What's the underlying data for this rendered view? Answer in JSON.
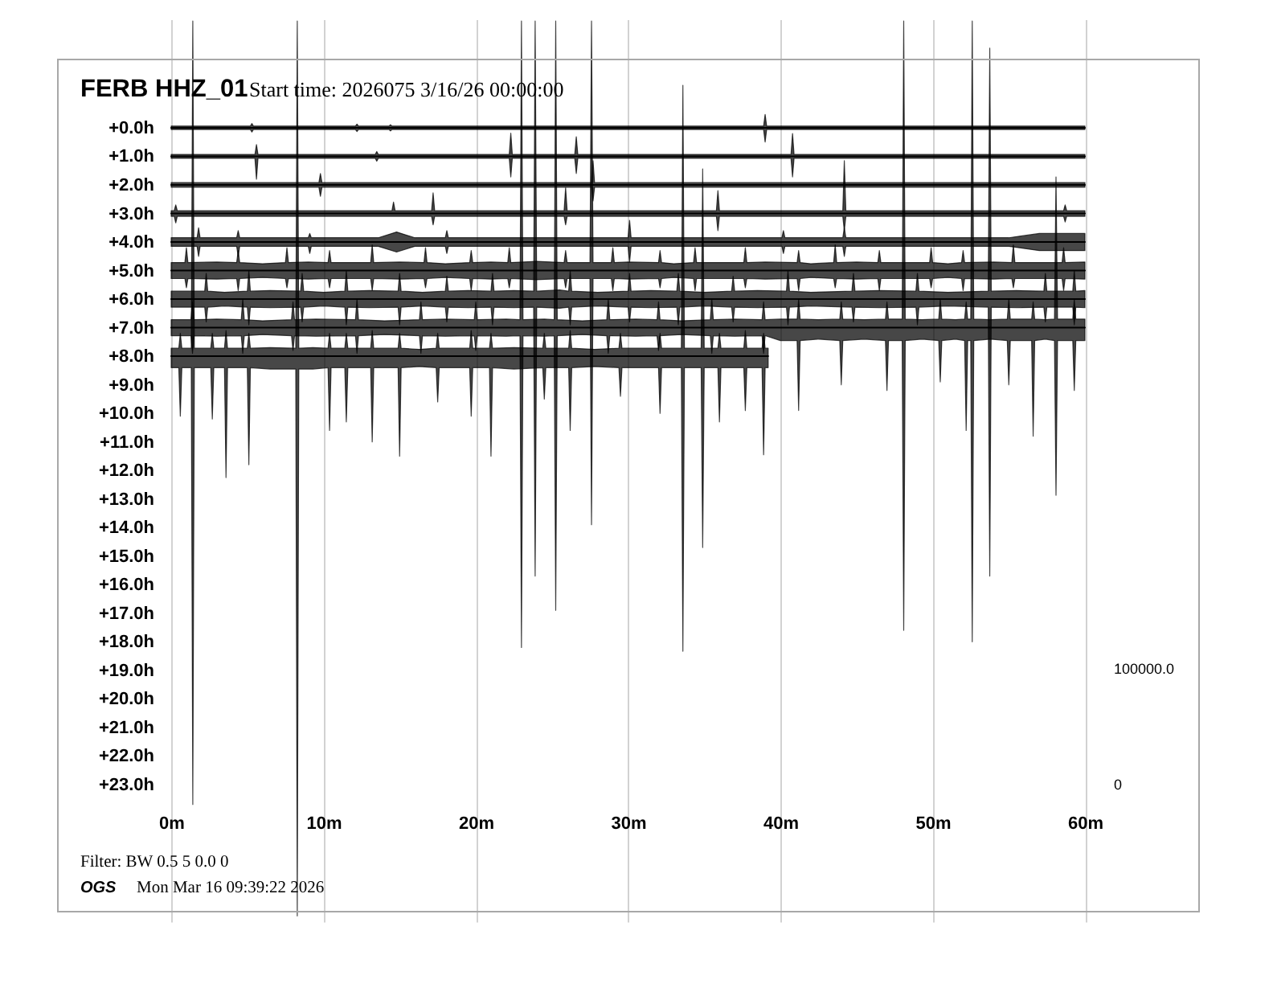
{
  "chart_data": {
    "type": "line",
    "title": "FERB HHZ_01",
    "subtitle": "Start time: 2026075  3/16/26 00:00:00",
    "annotations": [
      "Filter: BW 0.5 5 0.0 0",
      "OGS",
      "Mon Mar 16 09:39:22 2026",
      "100000.0",
      "0"
    ],
    "xlim": [
      0,
      60
    ],
    "xticks": [
      {
        "value": 0,
        "label": "0m"
      },
      {
        "value": 10,
        "label": "10m"
      },
      {
        "value": 20,
        "label": "20m"
      },
      {
        "value": 30,
        "label": "30m"
      },
      {
        "value": 40,
        "label": "40m"
      },
      {
        "value": 50,
        "label": "50m"
      },
      {
        "value": 60,
        "label": "60m"
      }
    ],
    "ylim": [
      27.8,
      -3.8
    ],
    "yticks": [
      {
        "value": 0,
        "label": "+0.0h"
      },
      {
        "value": 1,
        "label": "+1.0h"
      },
      {
        "value": 2,
        "label": "+2.0h"
      },
      {
        "value": 3,
        "label": "+3.0h"
      },
      {
        "value": 4,
        "label": "+4.0h"
      },
      {
        "value": 5,
        "label": "+5.0h"
      },
      {
        "value": 6,
        "label": "+6.0h"
      },
      {
        "value": 7,
        "label": "+7.0h"
      },
      {
        "value": 8,
        "label": "+8.0h"
      },
      {
        "value": 9,
        "label": "+9.0h"
      },
      {
        "value": 10,
        "label": "+10.0h"
      },
      {
        "value": 11,
        "label": "+11.0h"
      },
      {
        "value": 12,
        "label": "+12.0h"
      },
      {
        "value": 13,
        "label": "+13.0h"
      },
      {
        "value": 14,
        "label": "+14.0h"
      },
      {
        "value": 15,
        "label": "+15.0h"
      },
      {
        "value": 16,
        "label": "+16.0h"
      },
      {
        "value": 17,
        "label": "+17.0h"
      },
      {
        "value": 18,
        "label": "+18.0h"
      },
      {
        "value": 19,
        "label": "+19.0h"
      },
      {
        "value": 20,
        "label": "+20.0h"
      },
      {
        "value": 21,
        "label": "+21.0h"
      },
      {
        "value": 22,
        "label": "+22.0h"
      },
      {
        "value": 23,
        "label": "+23.0h"
      }
    ],
    "grid": "x",
    "series": [
      {
        "color": "#000000",
        "x": [
          0,
          5.2,
          5.3,
          5.4,
          12.1,
          12.2,
          12.3,
          14.3,
          14.4,
          14.5,
          38.9,
          39,
          39.1,
          60
        ],
        "values": [
          0,
          0,
          0,
          0,
          0,
          0,
          0,
          0,
          0,
          0,
          0,
          0,
          0,
          0
        ],
        "lower": [
          -0.06,
          -0.06,
          -0.15,
          -0.06,
          -0.06,
          -0.13,
          -0.06,
          -0.06,
          -0.11,
          -0.06,
          -0.06,
          -0.47,
          -0.06,
          -0.06
        ],
        "upper": [
          0.06,
          0.06,
          0.15,
          0.06,
          0.06,
          0.13,
          0.06,
          0.06,
          0.11,
          0.06,
          0.06,
          0.5,
          0.06,
          0.06
        ]
      },
      {
        "color": "#000000",
        "x": [
          0,
          5.5,
          5.6,
          5.7,
          13.4,
          13.5,
          13.6,
          22.2,
          22.3,
          22.4,
          26.5,
          26.6,
          26.7,
          40.7,
          40.8,
          40.9,
          60
        ],
        "values": [
          1,
          1,
          1,
          1,
          1,
          1,
          1,
          1,
          1,
          1,
          1,
          1,
          1,
          1,
          1,
          1,
          1
        ],
        "lower": [
          0.93,
          0.93,
          0.59,
          0.93,
          0.93,
          0.83,
          0.93,
          0.93,
          0.19,
          0.93,
          0.93,
          0.31,
          0.93,
          0.93,
          0.2,
          0.93,
          0.93
        ],
        "upper": [
          1.07,
          1.07,
          1.8,
          1.07,
          1.07,
          1.17,
          1.07,
          1.07,
          1.72,
          1.07,
          1.07,
          1.6,
          1.07,
          1.07,
          1.72,
          1.07,
          1.07
        ]
      },
      {
        "color": "#000000",
        "x": [
          0,
          9.7,
          9.8,
          9.9,
          27.6,
          27.7,
          27.8,
          60
        ],
        "values": [
          2,
          2,
          2,
          2,
          2,
          2,
          2,
          2
        ],
        "lower": [
          1.92,
          1.92,
          1.6,
          1.92,
          1.92,
          1.15,
          1.92,
          1.92
        ],
        "upper": [
          2.08,
          2.08,
          2.4,
          2.08,
          2.08,
          2.56,
          2.08,
          2.08
        ]
      },
      {
        "color": "#000000",
        "x": [
          0,
          0.2,
          0.3,
          0.4,
          14.5,
          14.6,
          14.7,
          17.1,
          17.2,
          17.3,
          25.8,
          25.9,
          26,
          35.8,
          35.9,
          36,
          44.1,
          44.2,
          44.3,
          58.6,
          58.7,
          58.8,
          60
        ],
        "values": [
          3,
          3,
          3,
          3,
          3,
          3,
          3,
          3,
          3,
          3,
          3,
          3,
          3,
          3,
          3,
          3,
          3,
          3,
          3,
          3,
          3,
          3,
          3
        ],
        "lower": [
          2.9,
          2.9,
          2.7,
          2.9,
          2.9,
          2.6,
          2.9,
          2.9,
          2.28,
          2.9,
          2.9,
          2.1,
          2.9,
          2.9,
          2.2,
          2.9,
          2.9,
          1.15,
          2.9,
          2.9,
          2.7,
          2.9,
          2.9
        ],
        "upper": [
          3.1,
          3.1,
          3.33,
          3.1,
          3.1,
          3.1,
          3.1,
          3.1,
          3.4,
          3.1,
          3.1,
          3.4,
          3.1,
          3.1,
          3.6,
          3.1,
          3.1,
          3.6,
          3.1,
          3.1,
          3.3,
          3.1,
          3.1
        ]
      },
      {
        "color": "#000000",
        "x": [
          0,
          1.7,
          1.8,
          1.9,
          4.3,
          4.4,
          4.5,
          9,
          9.1,
          9.2,
          13.6,
          14.8,
          16,
          18,
          18.1,
          18.2,
          30,
          30.1,
          30.2,
          40.1,
          40.2,
          40.3,
          44.1,
          44.2,
          44.3,
          55,
          57,
          60
        ],
        "values": [
          4,
          4,
          4,
          4,
          4,
          4,
          4,
          4,
          4,
          4,
          4,
          4,
          4,
          4,
          4,
          4,
          4,
          4,
          4,
          4,
          4,
          4,
          4,
          4,
          4,
          4,
          4,
          4
        ],
        "lower": [
          3.85,
          3.85,
          3.5,
          3.85,
          3.85,
          3.6,
          3.85,
          3.85,
          3.7,
          3.85,
          3.85,
          3.65,
          3.85,
          3.85,
          3.6,
          3.85,
          3.85,
          3.24,
          3.85,
          3.85,
          3.6,
          3.85,
          3.85,
          3.5,
          3.85,
          3.85,
          3.7,
          3.7
        ],
        "upper": [
          4.15,
          4.15,
          4.5,
          4.15,
          4.15,
          4.5,
          4.15,
          4.15,
          4.4,
          4.15,
          4.15,
          4.35,
          4.15,
          4.15,
          4.4,
          4.15,
          4.15,
          4.7,
          4.15,
          4.15,
          4.4,
          4.15,
          4.15,
          4.5,
          4.15,
          4.15,
          4.3,
          4.3
        ]
      },
      {
        "color": "#000000",
        "x": [
          0,
          0.9,
          1,
          1.1,
          3,
          4.3,
          4.4,
          4.5,
          6,
          7.5,
          7.6,
          7.7,
          9,
          10.3,
          10.4,
          10.5,
          12,
          13.1,
          13.2,
          13.3,
          15,
          16.6,
          16.7,
          16.8,
          18,
          19.6,
          19.7,
          19.8,
          21,
          22.1,
          22.2,
          22.3,
          24,
          25.8,
          25.9,
          26,
          27,
          27.5,
          27.6,
          27.7,
          28.9,
          29,
          29.1,
          30,
          32,
          32.1,
          32.2,
          33,
          34.3,
          34.4,
          34.5,
          36,
          37.6,
          37.7,
          37.8,
          39,
          41.1,
          41.2,
          41.3,
          42,
          43.5,
          43.6,
          43.7,
          45,
          46.4,
          46.5,
          46.6,
          48,
          49.8,
          49.9,
          50,
          51,
          51.9,
          52,
          52.1,
          54,
          55.2,
          55.3,
          55.4,
          57,
          58.5,
          58.6,
          58.7,
          60
        ],
        "values": [
          5,
          5,
          5,
          5,
          5,
          5,
          5,
          5,
          5,
          5,
          5,
          5,
          5,
          5,
          5,
          5,
          5,
          5,
          5,
          5,
          5,
          5,
          5,
          5,
          5,
          5,
          5,
          5,
          5,
          5,
          5,
          5,
          5,
          5,
          5,
          5,
          5,
          5,
          5,
          5,
          5,
          5,
          5,
          5,
          5,
          5,
          5,
          5,
          5,
          5,
          5,
          5,
          5,
          5,
          5,
          5,
          5,
          5,
          5,
          5,
          5,
          5,
          5,
          5,
          5,
          5,
          5,
          5,
          5,
          5,
          5,
          5,
          5,
          5,
          5,
          5,
          5,
          5,
          5,
          5,
          5,
          5,
          5,
          5
        ],
        "lower": [
          4.72,
          4.72,
          4.2,
          4.72,
          4.7,
          4.72,
          4.3,
          4.72,
          4.76,
          4.72,
          4.2,
          4.72,
          4.7,
          4.72,
          4.3,
          4.72,
          4.72,
          4.72,
          4.1,
          4.72,
          4.7,
          4.72,
          4.2,
          4.72,
          4.76,
          4.72,
          4.3,
          4.72,
          4.7,
          4.72,
          4.2,
          4.72,
          4.68,
          4.72,
          4.3,
          4.72,
          4.72,
          4.72,
          -3.74,
          4.72,
          4.72,
          4.2,
          4.72,
          4.7,
          4.72,
          4.3,
          4.72,
          4.76,
          4.72,
          4.2,
          4.72,
          4.72,
          4.72,
          4.2,
          4.72,
          4.7,
          4.72,
          4.3,
          4.72,
          4.76,
          4.72,
          4.1,
          4.72,
          4.7,
          4.72,
          4.3,
          4.72,
          4.72,
          4.72,
          4.2,
          4.72,
          4.76,
          4.72,
          4.3,
          4.72,
          4.7,
          4.72,
          4.1,
          4.72,
          4.72,
          4.72,
          4.2,
          4.72,
          4.7
        ],
        "upper": [
          5.28,
          5.28,
          5.6,
          5.28,
          5.3,
          5.28,
          5.7,
          5.28,
          5.24,
          5.28,
          5.6,
          5.28,
          5.3,
          5.28,
          5.6,
          5.28,
          5.28,
          5.28,
          5.7,
          5.28,
          5.3,
          5.28,
          5.6,
          5.28,
          5.24,
          5.28,
          5.7,
          5.28,
          5.3,
          5.28,
          5.6,
          5.28,
          5.32,
          5.28,
          5.6,
          5.28,
          5.28,
          5.28,
          13.9,
          5.28,
          5.28,
          5.7,
          5.28,
          5.3,
          5.28,
          5.6,
          5.28,
          5.24,
          5.28,
          5.7,
          5.28,
          5.28,
          5.28,
          5.6,
          5.28,
          5.3,
          5.28,
          5.7,
          5.28,
          5.24,
          5.28,
          5.6,
          5.28,
          5.3,
          5.28,
          5.7,
          5.28,
          5.28,
          5.28,
          5.6,
          5.28,
          5.24,
          5.28,
          5.7,
          5.28,
          5.3,
          5.28,
          5.6,
          5.28,
          5.28,
          5.28,
          5.7,
          5.28,
          5.3
        ]
      },
      {
        "color": "#000000",
        "x": [
          0,
          2.2,
          2.3,
          2.4,
          3.5,
          5,
          5.1,
          5.2,
          6.5,
          8.5,
          8.6,
          8.7,
          10,
          11.4,
          11.5,
          11.6,
          13,
          14.9,
          15,
          15.1,
          16.5,
          18,
          18.1,
          18.2,
          19.5,
          21,
          21.1,
          21.2,
          22.5,
          23.8,
          23.9,
          24,
          25.5,
          26.1,
          26.2,
          26.3,
          28,
          30,
          30.1,
          30.2,
          31.5,
          33.2,
          33.3,
          33.4,
          35,
          36.8,
          36.9,
          37,
          38.5,
          40.4,
          40.5,
          40.6,
          42,
          44.7,
          44.8,
          44.9,
          46.5,
          48.9,
          49,
          49.1,
          51,
          53.65,
          53.75,
          53.85,
          55.5,
          57.3,
          57.4,
          57.5,
          59.2,
          59.3,
          59.4,
          60
        ],
        "values": [
          6,
          6,
          6,
          6,
          6,
          6,
          6,
          6,
          6,
          6,
          6,
          6,
          6,
          6,
          6,
          6,
          6,
          6,
          6,
          6,
          6,
          6,
          6,
          6,
          6,
          6,
          6,
          6,
          6,
          6,
          6,
          6,
          6,
          6,
          6,
          6,
          6,
          6,
          6,
          6,
          6,
          6,
          6,
          6,
          6,
          6,
          6,
          6,
          6,
          6,
          6,
          6,
          6,
          6,
          6,
          6,
          6,
          6,
          6,
          6,
          6,
          6,
          6,
          6,
          6,
          6,
          6,
          6,
          6,
          6,
          6,
          6
        ],
        "lower": [
          5.72,
          5.72,
          5.1,
          5.72,
          5.76,
          5.72,
          5.0,
          5.72,
          5.7,
          5.72,
          5.1,
          5.72,
          5.76,
          5.72,
          5.0,
          5.72,
          5.7,
          5.72,
          5.1,
          5.72,
          5.76,
          5.72,
          5.2,
          5.72,
          5.7,
          5.72,
          5.1,
          5.72,
          5.7,
          5.72,
          -3.74,
          5.72,
          5.68,
          5.72,
          5.0,
          5.72,
          5.76,
          5.72,
          5.1,
          5.72,
          5.7,
          5.72,
          5.1,
          5.72,
          5.76,
          5.72,
          5.2,
          5.72,
          5.7,
          5.72,
          5.0,
          5.72,
          5.76,
          5.72,
          5.1,
          5.72,
          5.7,
          5.72,
          5.1,
          5.72,
          5.76,
          5.72,
          -2.79,
          5.72,
          5.7,
          5.72,
          5.1,
          5.72,
          5.72,
          5.0,
          5.72,
          5.7
        ],
        "upper": [
          6.28,
          6.28,
          6.8,
          6.28,
          6.24,
          6.28,
          6.9,
          6.28,
          6.3,
          6.28,
          6.8,
          6.28,
          6.24,
          6.28,
          6.9,
          6.28,
          6.3,
          6.28,
          6.9,
          6.28,
          6.24,
          6.28,
          6.8,
          6.28,
          6.3,
          6.28,
          6.9,
          6.28,
          6.3,
          6.28,
          15.7,
          6.28,
          6.32,
          6.28,
          6.9,
          6.28,
          6.24,
          6.28,
          6.8,
          6.28,
          6.3,
          6.28,
          6.9,
          6.28,
          6.24,
          6.28,
          6.8,
          6.28,
          6.3,
          6.28,
          6.9,
          6.28,
          6.24,
          6.28,
          6.8,
          6.28,
          6.3,
          6.28,
          6.9,
          6.28,
          6.24,
          6.28,
          15.7,
          6.28,
          6.3,
          6.28,
          6.8,
          6.28,
          6.28,
          6.9,
          6.28,
          6.3
        ]
      },
      {
        "color": "#000000",
        "x": [
          0,
          1.3,
          1.4,
          1.5,
          3,
          4.6,
          4.7,
          4.8,
          6,
          7.9,
          8,
          8.1,
          9.5,
          12.1,
          12.2,
          12.3,
          14,
          16.3,
          16.4,
          16.5,
          18,
          19.9,
          20,
          20.1,
          22,
          22.9,
          23,
          23.1,
          24.5,
          25.15,
          25.25,
          25.35,
          27,
          28.6,
          28.7,
          28.8,
          30.5,
          31.9,
          32,
          32.1,
          33.5,
          35.4,
          35.5,
          35.6,
          37,
          38.8,
          38.9,
          39,
          40,
          41.1,
          41.2,
          41.3,
          42.5,
          43.9,
          44,
          44.1,
          45.5,
          46.9,
          47,
          47.1,
          48,
          48.1,
          48.2,
          49.3,
          50.4,
          50.5,
          50.6,
          51.5,
          52.1,
          52.2,
          52.3,
          52.5,
          52.6,
          52.7,
          53.8,
          54.9,
          55,
          55.1,
          56.5,
          56.6,
          56.7,
          57.4,
          58,
          58.1,
          58.2,
          59.2,
          59.3,
          59.4,
          60
        ],
        "values": [
          7,
          7,
          7,
          7,
          7,
          7,
          7,
          7,
          7,
          7,
          7,
          7,
          7,
          7,
          7,
          7,
          7,
          7,
          7,
          7,
          7,
          7,
          7,
          7,
          7,
          7,
          7,
          7,
          7,
          7,
          7,
          7,
          7,
          7,
          7,
          7,
          7,
          7,
          7,
          7,
          7,
          7,
          7,
          7,
          7,
          7,
          7,
          7,
          7,
          7,
          7,
          7,
          7,
          7,
          7,
          7,
          7,
          7,
          7,
          7,
          7,
          7,
          7,
          7,
          7,
          7,
          7,
          7,
          7,
          7,
          7,
          7,
          7,
          7,
          7,
          7,
          7,
          7,
          7,
          7,
          7,
          7,
          7,
          7,
          7,
          7,
          7,
          7,
          7
        ],
        "lower": [
          6.72,
          6.72,
          6.1,
          6.72,
          6.7,
          6.72,
          6.0,
          6.72,
          6.76,
          6.72,
          6.1,
          6.72,
          6.7,
          6.72,
          6.0,
          6.72,
          6.76,
          6.72,
          6.1,
          6.72,
          6.7,
          6.72,
          6.1,
          6.72,
          6.7,
          6.72,
          -3.74,
          6.72,
          6.7,
          6.72,
          -3.74,
          6.72,
          6.76,
          6.72,
          6.0,
          6.72,
          6.7,
          6.72,
          6.1,
          6.72,
          6.76,
          6.72,
          6.0,
          6.72,
          6.7,
          6.72,
          6.1,
          6.72,
          6.7,
          6.7,
          6.0,
          6.7,
          6.72,
          6.7,
          6.1,
          6.7,
          6.72,
          6.7,
          6.1,
          6.7,
          6.7,
          -3.74,
          6.7,
          6.72,
          6.7,
          6.0,
          6.7,
          6.72,
          6.7,
          6.1,
          6.7,
          6.7,
          -3.74,
          6.7,
          6.72,
          6.7,
          6.0,
          6.7,
          6.7,
          6.1,
          6.7,
          6.72,
          6.7,
          1.72,
          6.7,
          6.7,
          6.0,
          6.7,
          6.7
        ],
        "upper": [
          7.28,
          7.28,
          7.9,
          7.28,
          7.3,
          7.28,
          7.9,
          7.28,
          7.24,
          7.28,
          7.8,
          7.28,
          7.3,
          7.28,
          7.9,
          7.28,
          7.24,
          7.28,
          7.9,
          7.28,
          7.3,
          7.28,
          7.8,
          7.28,
          7.3,
          7.28,
          18.2,
          7.28,
          7.3,
          7.28,
          16.9,
          7.28,
          7.24,
          7.28,
          7.9,
          7.28,
          7.3,
          7.28,
          7.8,
          7.28,
          7.24,
          7.28,
          7.9,
          7.28,
          7.3,
          7.28,
          7.9,
          7.28,
          7.45,
          7.45,
          9.9,
          7.45,
          7.4,
          7.45,
          9.0,
          7.45,
          7.4,
          7.45,
          9.2,
          7.45,
          7.45,
          17.6,
          7.45,
          7.4,
          7.45,
          8.9,
          7.45,
          7.4,
          7.45,
          10.6,
          7.45,
          7.45,
          18.0,
          7.45,
          7.4,
          7.45,
          9.0,
          7.45,
          7.45,
          10.8,
          7.45,
          7.4,
          7.45,
          12.87,
          7.45,
          7.45,
          9.2,
          7.45,
          7.45
        ]
      },
      {
        "color": "#000000",
        "x": [
          0,
          0.5,
          0.6,
          0.7,
          1.32,
          1.42,
          1.52,
          2.6,
          2.7,
          2.8,
          3.5,
          3.6,
          3.7,
          5,
          5.1,
          5.2,
          6.5,
          8.18,
          8.28,
          8.38,
          9.3,
          10.3,
          10.4,
          10.5,
          11.4,
          11.5,
          11.6,
          13.1,
          13.2,
          13.3,
          14.9,
          15,
          15.1,
          16.3,
          17.4,
          17.5,
          17.6,
          19.6,
          19.7,
          19.8,
          20.9,
          21,
          21.1,
          22.5,
          24.4,
          24.5,
          24.6,
          26.1,
          26.2,
          26.3,
          27.8,
          29.4,
          29.5,
          29.6,
          32,
          32.1,
          32.2,
          33.5,
          33.6,
          33.7,
          34.8,
          34.9,
          35,
          35.9,
          36,
          36.1,
          37.6,
          37.7,
          37.8,
          38.8,
          38.9,
          39,
          39.2
        ],
        "values": [
          8,
          8,
          8,
          8,
          8,
          8,
          8,
          8,
          8,
          8,
          8,
          8,
          8,
          8,
          8,
          8,
          8,
          8,
          8,
          8,
          8,
          8,
          8,
          8,
          8,
          8,
          8,
          8,
          8,
          8,
          8,
          8,
          8,
          8,
          8,
          8,
          8,
          8,
          8,
          8,
          8,
          8,
          8,
          8,
          8,
          8,
          8,
          8,
          8,
          8,
          8,
          8,
          8,
          8,
          8,
          8,
          8,
          8,
          8,
          8,
          8,
          8,
          8,
          8,
          8,
          8,
          8,
          8,
          8,
          8,
          8,
          8,
          8
        ],
        "lower": [
          7.72,
          7.72,
          7.2,
          7.72,
          7.72,
          -3.74,
          7.72,
          7.72,
          7.2,
          7.72,
          7.72,
          7.1,
          7.72,
          7.72,
          7.2,
          7.72,
          7.7,
          7.72,
          -3.74,
          7.72,
          7.7,
          7.72,
          7.2,
          7.72,
          7.72,
          7.2,
          7.72,
          7.72,
          7.1,
          7.72,
          7.72,
          7.2,
          7.72,
          7.76,
          7.72,
          7.2,
          7.72,
          7.72,
          7.1,
          7.72,
          7.72,
          7.2,
          7.72,
          7.7,
          7.72,
          7.2,
          7.72,
          7.72,
          7.1,
          7.72,
          7.76,
          7.72,
          7.2,
          7.72,
          7.72,
          7.2,
          7.72,
          7.72,
          -1.49,
          7.72,
          7.72,
          1.44,
          7.72,
          7.72,
          7.2,
          7.72,
          7.72,
          7.1,
          7.72,
          7.72,
          7.2,
          7.72,
          7.72
        ],
        "upper": [
          8.4,
          8.4,
          10.1,
          8.4,
          8.4,
          23.7,
          8.4,
          8.4,
          10.2,
          8.4,
          8.4,
          12.25,
          8.4,
          8.4,
          11.8,
          8.4,
          8.45,
          8.45,
          27.6,
          8.45,
          8.45,
          8.4,
          10.6,
          8.4,
          8.4,
          10.3,
          8.4,
          8.4,
          11.0,
          8.4,
          8.4,
          11.5,
          8.4,
          8.36,
          8.4,
          9.6,
          8.4,
          8.4,
          10.1,
          8.4,
          8.4,
          11.5,
          8.4,
          8.45,
          8.4,
          9.5,
          8.4,
          8.4,
          10.6,
          8.4,
          8.36,
          8.4,
          9.4,
          8.4,
          8.4,
          10.0,
          8.4,
          8.4,
          18.33,
          8.4,
          8.4,
          14.7,
          8.4,
          8.4,
          10.3,
          8.4,
          8.4,
          9.9,
          8.4,
          8.4,
          11.45,
          8.4,
          8.4
        ]
      }
    ]
  }
}
